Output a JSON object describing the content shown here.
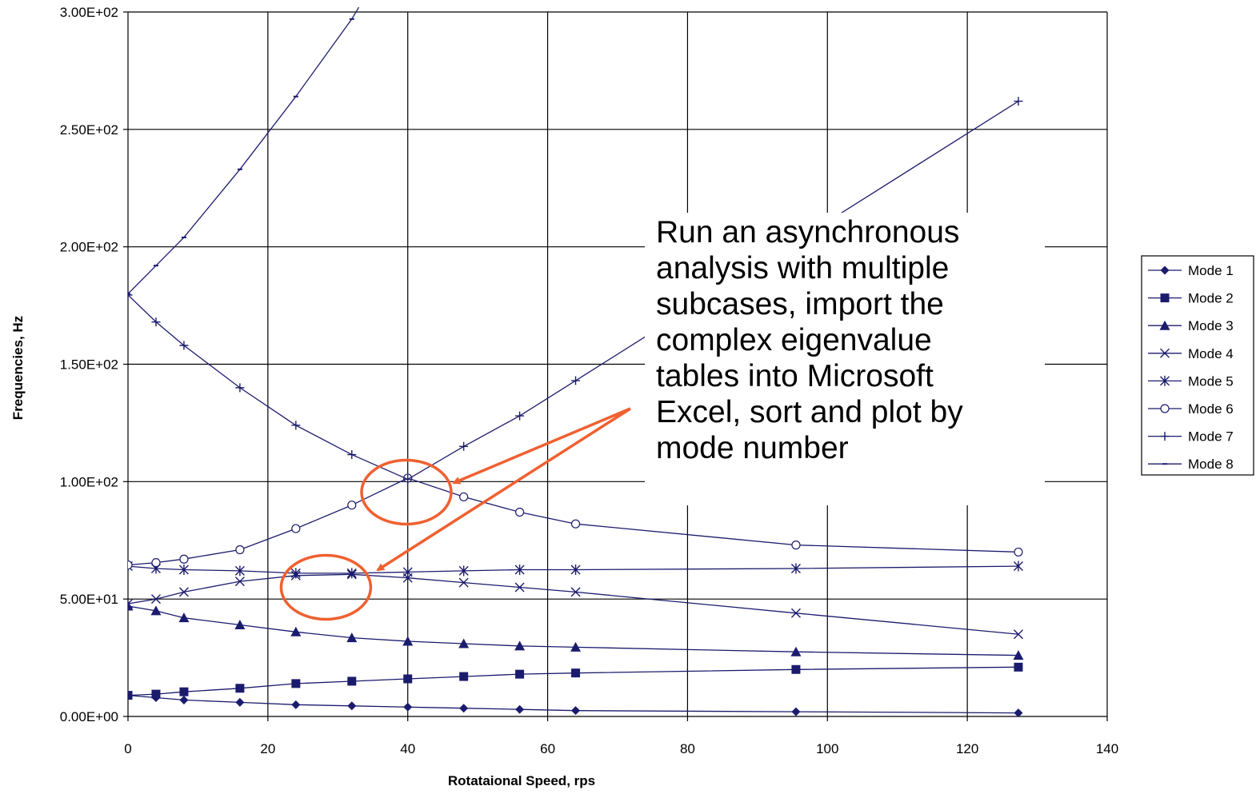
{
  "chart_data": {
    "type": "line",
    "xlabel": "Rotataional Speed, rps",
    "ylabel": "Frequencies, Hz",
    "xlim": [
      0,
      140
    ],
    "ylim": [
      0,
      300
    ],
    "x_ticks": [
      "0",
      "20",
      "40",
      "60",
      "80",
      "100",
      "120",
      "140"
    ],
    "y_ticks": [
      "0.00E+00",
      "5.00E+01",
      "1.00E+02",
      "1.50E+02",
      "2.00E+02",
      "2.50E+02",
      "3.00E+02"
    ],
    "grid": true,
    "legend_position": "right",
    "line_color": "#1b1b6e",
    "series": [
      {
        "name": "Mode 1",
        "marker": "diamond",
        "x": [
          0,
          4,
          8,
          16,
          24,
          32,
          40,
          48,
          56,
          64,
          95.5,
          127.3
        ],
        "y": [
          9,
          8,
          7,
          6,
          5,
          4.5,
          4,
          3.5,
          3,
          2.5,
          2,
          1.5
        ]
      },
      {
        "name": "Mode 2",
        "marker": "square",
        "x": [
          0,
          4,
          8,
          16,
          24,
          32,
          40,
          48,
          56,
          64,
          95.5,
          127.3
        ],
        "y": [
          9,
          9.5,
          10.5,
          12,
          14,
          15,
          16,
          17,
          18,
          18.5,
          20,
          21
        ]
      },
      {
        "name": "Mode 3",
        "marker": "triangle",
        "x": [
          0,
          4,
          8,
          16,
          24,
          32,
          40,
          48,
          56,
          64,
          95.5,
          127.3
        ],
        "y": [
          47,
          45,
          42,
          39,
          36,
          33.5,
          32,
          31,
          30,
          29.5,
          27.5,
          26
        ]
      },
      {
        "name": "Mode 4",
        "marker": "x",
        "x": [
          0,
          4,
          8,
          16,
          24,
          32,
          40,
          48,
          56,
          64,
          95.5,
          127.3
        ],
        "y": [
          48,
          50,
          53,
          57.5,
          60,
          60.5,
          59,
          57,
          55,
          53,
          44,
          35
        ]
      },
      {
        "name": "Mode 5",
        "marker": "asterisk",
        "x": [
          0,
          4,
          8,
          16,
          24,
          32,
          40,
          48,
          56,
          64,
          95.5,
          127.3
        ],
        "y": [
          64,
          63,
          62.5,
          62,
          61,
          61,
          61.5,
          62,
          62.5,
          62.5,
          63,
          64
        ]
      },
      {
        "name": "Mode 6",
        "marker": "circle",
        "x": [
          0,
          4,
          8,
          16,
          24,
          32,
          40,
          48,
          56,
          64,
          95.5,
          127.3
        ],
        "y": [
          64.5,
          65.5,
          67,
          71,
          80,
          90,
          101.5,
          93.5,
          87,
          82,
          73,
          70
        ]
      },
      {
        "name": "Mode 7",
        "marker": "plus",
        "x": [
          0,
          4,
          8,
          16,
          24,
          32,
          40,
          48,
          56,
          64,
          127.3
        ],
        "y": [
          179.5,
          168,
          158,
          140,
          124,
          111.5,
          101,
          115,
          128,
          143,
          262
        ]
      },
      {
        "name": "Mode 8",
        "marker": "dash",
        "x": [
          0,
          4,
          8,
          16,
          24,
          32,
          33
        ],
        "y": [
          180,
          192,
          204,
          233,
          264,
          297,
          302
        ]
      }
    ]
  },
  "annotation": {
    "lines": [
      "Run an asynchronous",
      "analysis with multiple",
      "subcases, import the",
      "complex eigenvalue",
      "tables into Microsoft",
      "Excel, sort and plot by",
      "mode number"
    ],
    "highlight_color": "#f06030"
  }
}
